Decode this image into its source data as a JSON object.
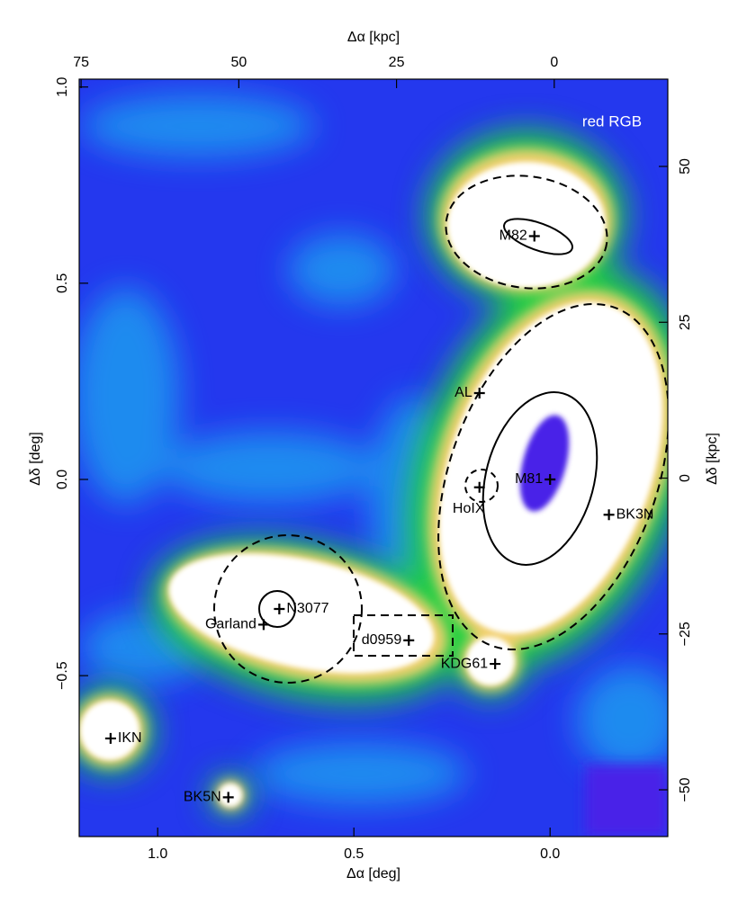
{
  "chart_data": {
    "type": "map",
    "x_label": "Δα [deg]",
    "y_label": "Δδ [deg]",
    "x2_label": "Δα [kpc]",
    "y2_label": "Δδ [kpc]",
    "annotation": "red RGB",
    "xlim": [
      1.2,
      -0.3
    ],
    "ylim": [
      -0.91,
      1.02
    ],
    "x2lim": [
      75.3,
      -18
    ],
    "y2lim": [
      -57.5,
      64
    ],
    "xticks": [
      {
        "value": 1.0,
        "label": "1.0"
      },
      0.5,
      {
        "value": 0.0,
        "label": "0.0"
      }
    ],
    "yticks": [
      {
        "value": -0.5,
        "label": "−0.5"
      },
      {
        "value": 0.0,
        "label": "0.0"
      },
      0.5,
      {
        "value": 1.0,
        "label": "1.0"
      }
    ],
    "x2ticks": [
      75,
      50,
      25,
      0
    ],
    "y2ticks": [
      {
        "value": -50,
        "label": "−50"
      },
      {
        "value": -25,
        "label": "−25"
      },
      0,
      25,
      50
    ],
    "objects": [
      {
        "name": "M82",
        "x": 0.04,
        "y": 0.62
      },
      {
        "name": "AL",
        "x": 0.18,
        "y": 0.22
      },
      {
        "name": "M81",
        "x": 0.0,
        "y": 0.0
      },
      {
        "name": "HoIX",
        "x": 0.18,
        "y": -0.02
      },
      {
        "name": "BK3N",
        "x": -0.15,
        "y": -0.09
      },
      {
        "name": "N3077",
        "x": 0.69,
        "y": -0.33
      },
      {
        "name": "Garland",
        "x": 0.73,
        "y": -0.37
      },
      {
        "name": "d0959",
        "x": 0.36,
        "y": -0.41
      },
      {
        "name": "KDG61",
        "x": 0.14,
        "y": -0.47
      },
      {
        "name": "IKN",
        "x": 1.12,
        "y": -0.66
      },
      {
        "name": "BK5N",
        "x": 0.82,
        "y": -0.81
      }
    ]
  }
}
